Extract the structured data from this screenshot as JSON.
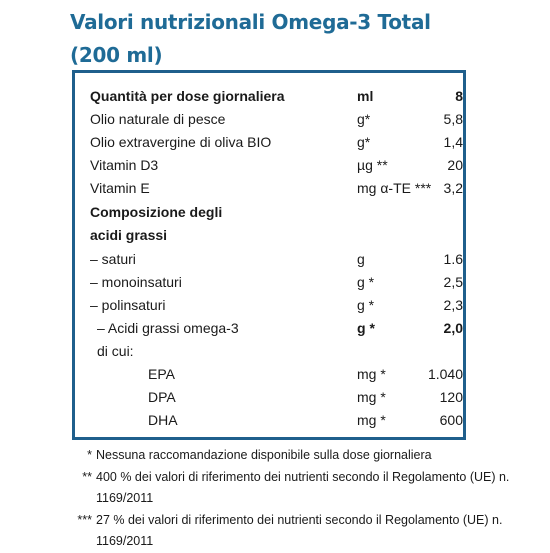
{
  "title_line1": "Valori nutrizionali Omega-3 Total",
  "title_line2": "(200 ml)",
  "header": {
    "label": "Quantità per dose giornaliera",
    "value": "8",
    "unit": "ml"
  },
  "rows": [
    {
      "label": "Olio naturale di pesce",
      "value": "5,8",
      "unit": "g*"
    },
    {
      "label": "Olio extravergine di oliva BIO",
      "value": "1,4",
      "unit": "g*"
    },
    {
      "label": "Vitamin D3",
      "value": "20",
      "unit": "µg **"
    },
    {
      "label": "Vitamin E",
      "value": "3,2",
      "unit": "mg α-TE ***"
    }
  ],
  "composition_line1": "Composizione degli",
  "composition_line2": "acidi grassi",
  "fats": [
    {
      "label": "– saturi",
      "value": "1.6",
      "unit": "g"
    },
    {
      "label": "– monoinsaturi",
      "value": "2,5",
      "unit": "g *"
    },
    {
      "label": "– polinsaturi",
      "value": "2,3",
      "unit": "g *"
    }
  ],
  "omega3": {
    "label": "– Acidi grassi omega-3",
    "value": "2,0",
    "unit": "g *"
  },
  "dicui": "di cui:",
  "sub": [
    {
      "label": "EPA",
      "value": "1.040",
      "unit": "mg *"
    },
    {
      "label": "DPA",
      "value": "120",
      "unit": "mg *"
    },
    {
      "label": "DHA",
      "value": "600",
      "unit": "mg *"
    }
  ],
  "notes": [
    {
      "mark": "*",
      "text": "Nessuna raccomandazione disponibile sulla dose giornaliera"
    },
    {
      "mark": "**",
      "text": "400 % dei valori di riferimento dei nutrienti secondo il Regolamento (UE) n. 1169/2011"
    },
    {
      "mark": "***",
      "text": "27 % dei valori di riferimento dei nutrienti secondo il Regolamento (UE) n. 1169/2011"
    }
  ],
  "colors": {
    "title": "#1f6b96",
    "border": "#1f5f8c"
  }
}
